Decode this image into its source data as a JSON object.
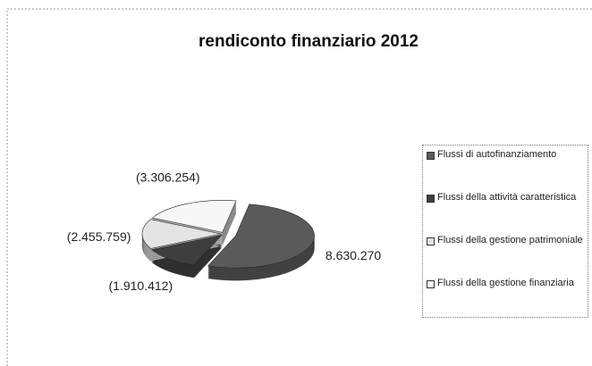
{
  "chart_data": {
    "type": "pie",
    "title": "rendiconto finanziario 2012",
    "categories": [
      "Flussi di autofinanziamento",
      "Flussi della attività caratteristica",
      "Flussi della gestione patrimoniale",
      "Flussi della gestione finanziaria"
    ],
    "values": [
      8630270,
      -1910412,
      -2455759,
      -3306254
    ],
    "value_labels": [
      "8.630.270",
      "(1.910.412)",
      "(2.455.759)",
      "(3.306.254)"
    ],
    "colors": [
      "#5a5a5a",
      "#3e3e3e",
      "#e4e4e4",
      "#f7f7f7"
    ],
    "legend": "right"
  }
}
